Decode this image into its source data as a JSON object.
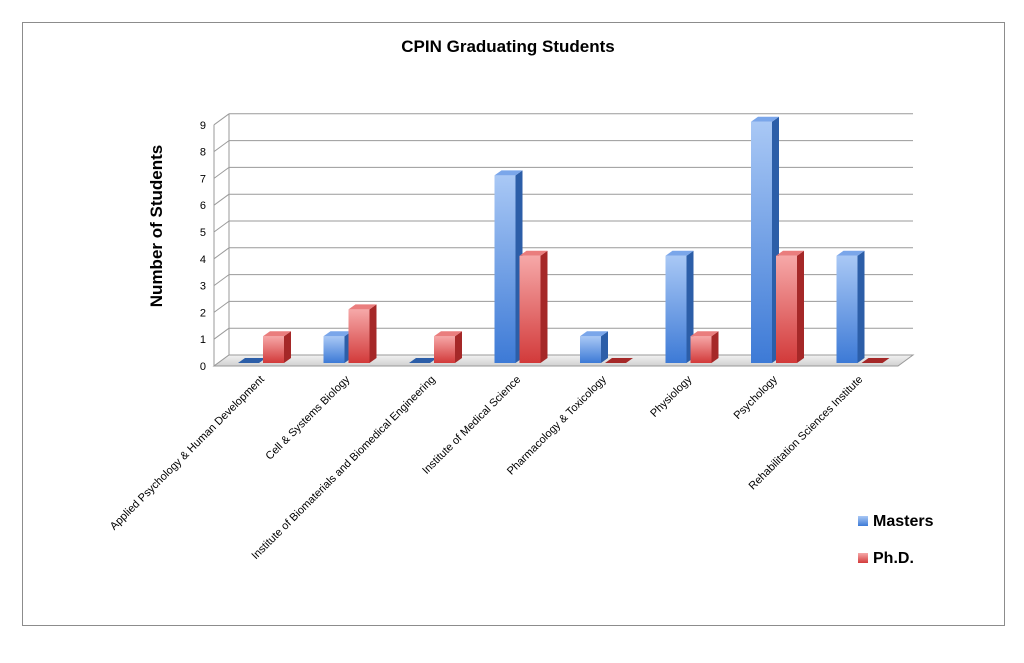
{
  "chart_data": {
    "type": "bar",
    "title": "CPIN Graduating Students",
    "ylabel": "Number of Students",
    "xlabel": "",
    "ylim": [
      0,
      9
    ],
    "yticks": [
      0,
      1,
      2,
      3,
      4,
      5,
      6,
      7,
      8,
      9
    ],
    "grid": true,
    "legend_position": "right",
    "categories": [
      "Applied Psychology & Human Development",
      "Cell & Systems Biology",
      "Institute of Biomaterials and Biomedical Engineering",
      "Institute of Medical Science",
      "Pharmacology & Toxicology",
      "Physiology",
      "Psychology",
      "Rehabilitation Sciences Institute"
    ],
    "series": [
      {
        "name": "Masters",
        "color": "#5b8fe0",
        "values": [
          0,
          1,
          0,
          7,
          1,
          4,
          9,
          4
        ]
      },
      {
        "name": "Ph.D.",
        "color": "#e05555",
        "values": [
          1,
          2,
          1,
          4,
          0,
          1,
          4,
          0
        ]
      }
    ]
  }
}
